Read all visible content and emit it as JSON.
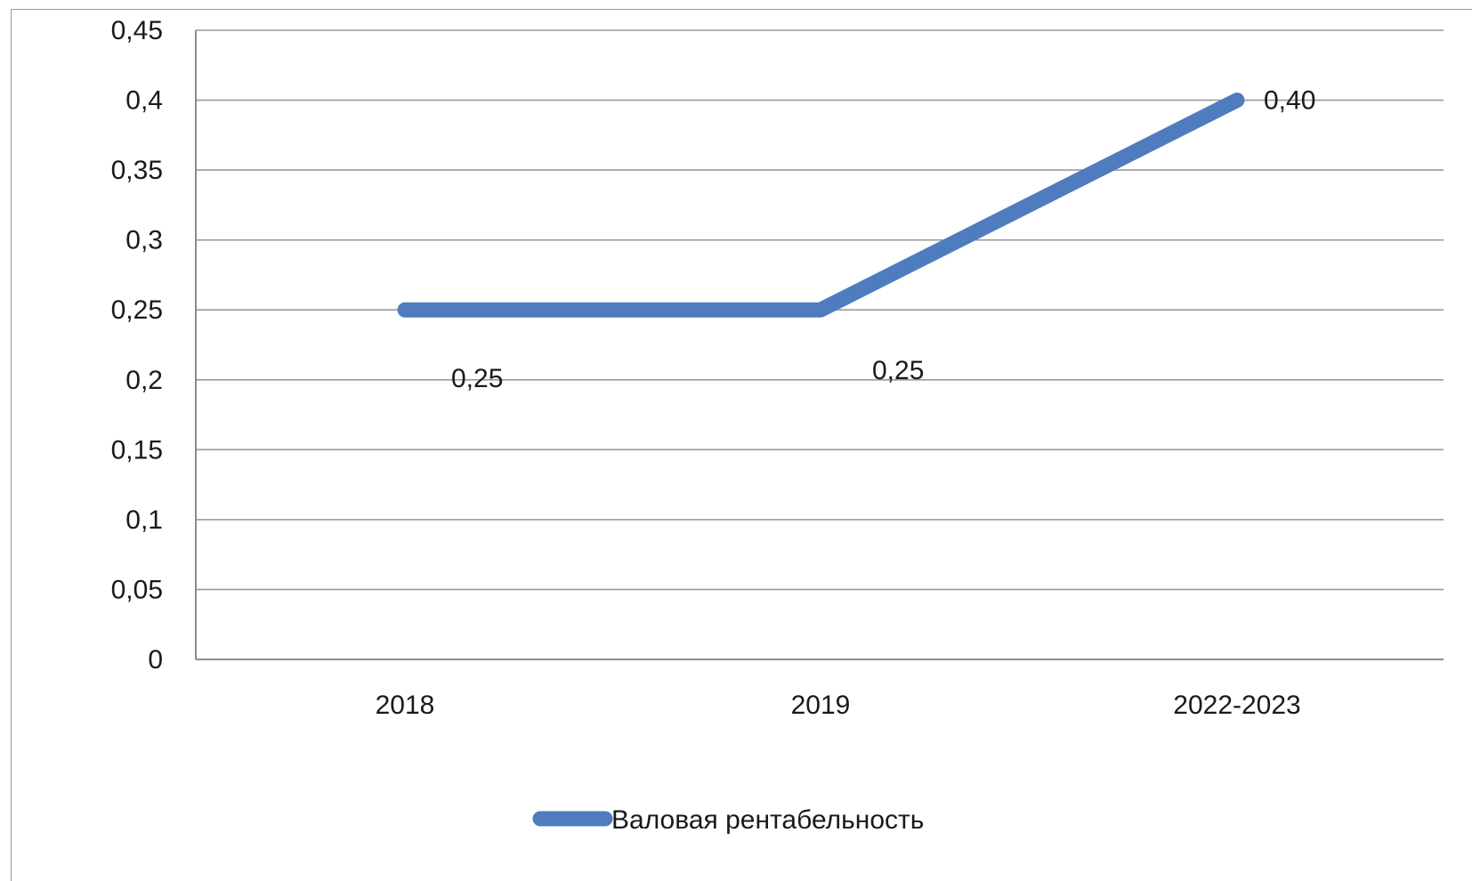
{
  "chart_data": {
    "type": "line",
    "categories": [
      "2018",
      "2019",
      "2022-2023"
    ],
    "series": [
      {
        "name": "Валовая рентабельность",
        "values": [
          0.25,
          0.25,
          0.4
        ],
        "data_labels": [
          "0,25",
          "0,25",
          "0,40"
        ],
        "color": "#4f7cbf"
      }
    ],
    "y_ticks": [
      "0",
      "0,05",
      "0,1",
      "0,15",
      "0,2",
      "0,25",
      "0,3",
      "0,35",
      "0,4",
      "0,45"
    ],
    "ylim": [
      0,
      0.45
    ],
    "y_step": 0.05,
    "grid": true,
    "legend_position": "bottom",
    "title": "",
    "xlabel": "",
    "ylabel": ""
  }
}
